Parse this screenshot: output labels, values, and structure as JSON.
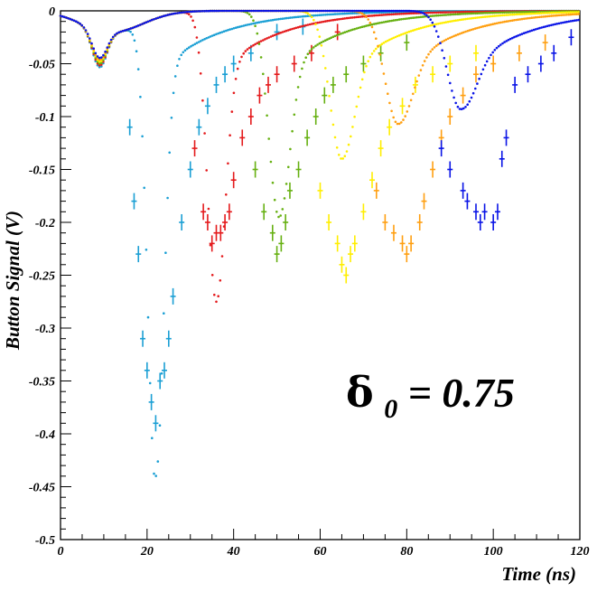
{
  "chart_data": {
    "type": "scatter",
    "title": "",
    "xlabel": "Time (ns)",
    "ylabel": "Button Signal (V)",
    "xlim": [
      0,
      120
    ],
    "ylim": [
      -0.5,
      0
    ],
    "x_ticks": [
      0,
      20,
      40,
      60,
      80,
      100,
      120
    ],
    "y_ticks": [
      0,
      -0.05,
      -0.1,
      -0.15,
      -0.2,
      -0.25,
      -0.3,
      -0.35,
      -0.4,
      -0.45,
      -0.5
    ],
    "x_tick_labels": [
      "0",
      "20",
      "40",
      "60",
      "80",
      "100",
      "120"
    ],
    "y_tick_labels": [
      "0",
      "-0.05",
      "-0.1",
      "-0.15",
      "-0.2",
      "-0.25",
      "-0.3",
      "-0.35",
      "-0.4",
      "-0.45",
      "-0.5"
    ],
    "grid": false,
    "legend": "none",
    "annotation": {
      "symbol": "δ",
      "subscript": "0",
      "text": " = 0.75"
    },
    "series": [
      {
        "color": "#1a9fd4",
        "simulation": {
          "t0": 22,
          "amp": -0.44,
          "width": 2.6
        },
        "measured": [
          [
            16,
            -0.11
          ],
          [
            17,
            -0.18
          ],
          [
            18,
            -0.23
          ],
          [
            19,
            -0.31
          ],
          [
            20,
            -0.34
          ],
          [
            21,
            -0.37
          ],
          [
            22,
            -0.39
          ],
          [
            23,
            -0.35
          ],
          [
            24,
            -0.34
          ],
          [
            25,
            -0.31
          ],
          [
            26,
            -0.27
          ],
          [
            28,
            -0.2
          ],
          [
            30,
            -0.15
          ],
          [
            32,
            -0.11
          ],
          [
            34,
            -0.09
          ],
          [
            36,
            -0.07
          ],
          [
            38,
            -0.06
          ],
          [
            40,
            -0.05
          ],
          [
            44,
            -0.04
          ],
          [
            50,
            -0.02
          ],
          [
            56,
            -0.015
          ]
        ]
      },
      {
        "color": "#e41a1c",
        "simulation": {
          "t0": 36,
          "amp": -0.275,
          "width": 2.9
        },
        "measured": [
          [
            31,
            -0.13
          ],
          [
            33,
            -0.19
          ],
          [
            34,
            -0.2
          ],
          [
            35,
            -0.22
          ],
          [
            36,
            -0.21
          ],
          [
            37,
            -0.21
          ],
          [
            38,
            -0.2
          ],
          [
            39,
            -0.19
          ],
          [
            40,
            -0.16
          ],
          [
            42,
            -0.12
          ],
          [
            44,
            -0.1
          ],
          [
            46,
            -0.08
          ],
          [
            48,
            -0.07
          ],
          [
            50,
            -0.06
          ],
          [
            54,
            -0.05
          ],
          [
            58,
            -0.04
          ],
          [
            64,
            -0.02
          ]
        ]
      },
      {
        "color": "#66b011",
        "simulation": {
          "t0": 50.5,
          "amp": -0.195,
          "width": 3.4
        },
        "measured": [
          [
            45,
            -0.15
          ],
          [
            47,
            -0.19
          ],
          [
            49,
            -0.21
          ],
          [
            50,
            -0.23
          ],
          [
            51,
            -0.22
          ],
          [
            52,
            -0.2
          ],
          [
            53,
            -0.17
          ],
          [
            55,
            -0.15
          ],
          [
            57,
            -0.12
          ],
          [
            59,
            -0.1
          ],
          [
            61,
            -0.08
          ],
          [
            63,
            -0.07
          ],
          [
            66,
            -0.06
          ],
          [
            70,
            -0.05
          ],
          [
            74,
            -0.04
          ],
          [
            80,
            -0.03
          ]
        ]
      },
      {
        "color": "#ffee00",
        "simulation": {
          "t0": 65,
          "amp": -0.14,
          "width": 3.9
        },
        "measured": [
          [
            60,
            -0.17
          ],
          [
            62,
            -0.2
          ],
          [
            64,
            -0.22
          ],
          [
            65,
            -0.24
          ],
          [
            66,
            -0.25
          ],
          [
            67,
            -0.23
          ],
          [
            68,
            -0.22
          ],
          [
            70,
            -0.19
          ],
          [
            72,
            -0.16
          ],
          [
            74,
            -0.13
          ],
          [
            76,
            -0.11
          ],
          [
            79,
            -0.09
          ],
          [
            82,
            -0.07
          ],
          [
            86,
            -0.06
          ],
          [
            90,
            -0.05
          ],
          [
            96,
            -0.04
          ]
        ]
      },
      {
        "color": "#ff9f10",
        "simulation": {
          "t0": 78,
          "amp": -0.107,
          "width": 4.3
        },
        "measured": [
          [
            73,
            -0.17
          ],
          [
            75,
            -0.2
          ],
          [
            77,
            -0.21
          ],
          [
            79,
            -0.22
          ],
          [
            80,
            -0.23
          ],
          [
            81,
            -0.22
          ],
          [
            83,
            -0.2
          ],
          [
            84,
            -0.18
          ],
          [
            86,
            -0.15
          ],
          [
            88,
            -0.12
          ],
          [
            90,
            -0.1
          ],
          [
            93,
            -0.08
          ],
          [
            96,
            -0.06
          ],
          [
            100,
            -0.05
          ],
          [
            106,
            -0.04
          ],
          [
            112,
            -0.03
          ]
        ]
      },
      {
        "color": "#0a14e6",
        "simulation": {
          "t0": 92.5,
          "amp": -0.093,
          "width": 4.5
        },
        "measured": [
          [
            88,
            -0.13
          ],
          [
            90,
            -0.15
          ],
          [
            93,
            -0.17
          ],
          [
            94,
            -0.18
          ],
          [
            96,
            -0.19
          ],
          [
            97,
            -0.2
          ],
          [
            98,
            -0.19
          ],
          [
            100,
            -0.2
          ],
          [
            101,
            -0.19
          ],
          [
            102,
            -0.14
          ],
          [
            103,
            -0.12
          ],
          [
            105,
            -0.07
          ],
          [
            108,
            -0.06
          ],
          [
            111,
            -0.05
          ],
          [
            114,
            -0.04
          ],
          [
            118,
            -0.025
          ]
        ]
      }
    ]
  }
}
